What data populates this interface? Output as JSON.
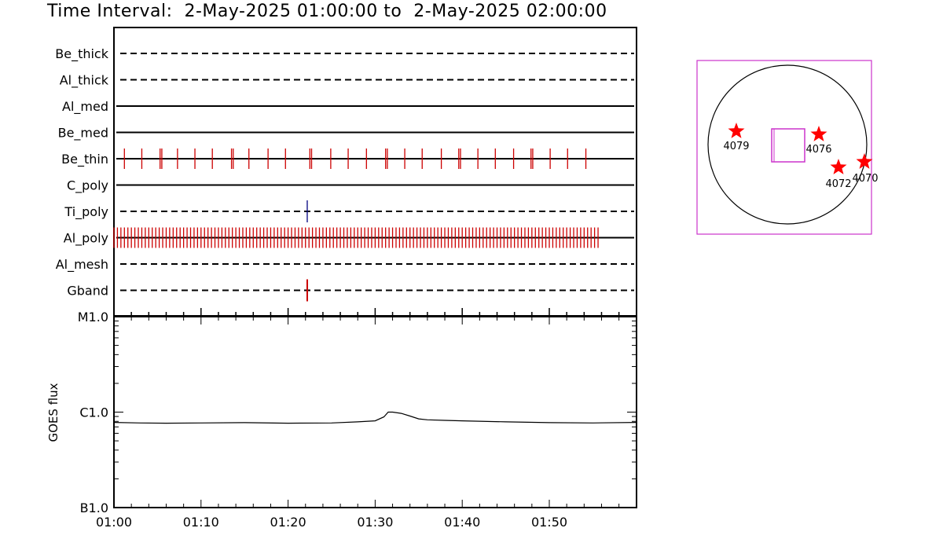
{
  "title": "Time Interval:  2-May-2025 01:00:00 to  2-May-2025 02:00:00",
  "chart_data": [
    {
      "type": "timeline",
      "x_range": [
        "01:00",
        "02:00"
      ],
      "x_tick_labels": [
        "01:00",
        "01:10",
        "01:20",
        "01:30",
        "01:40",
        "01:50"
      ],
      "channels": [
        {
          "name": "Be_thick",
          "style": "dashed",
          "events": [],
          "color": "#000000"
        },
        {
          "name": "Al_thick",
          "style": "dashed",
          "events": [],
          "color": "#000000"
        },
        {
          "name": "Al_med",
          "style": "solid",
          "events": [],
          "color": "#000000"
        },
        {
          "name": "Be_med",
          "style": "solid",
          "events": [],
          "color": "#000000"
        },
        {
          "name": "Be_thin",
          "style": "solid",
          "color": "#cc0000",
          "events": [
            1.2,
            3.2,
            5.3,
            5.5,
            7.3,
            9.3,
            11.3,
            13.5,
            13.7,
            15.5,
            17.7,
            19.7,
            22.5,
            22.7,
            24.9,
            26.9,
            29.0,
            31.2,
            31.4,
            33.4,
            35.4,
            37.6,
            39.6,
            39.8,
            41.8,
            43.8,
            45.9,
            47.9,
            48.1,
            50.1,
            52.1,
            54.2
          ]
        },
        {
          "name": "C_poly",
          "style": "solid",
          "events": [],
          "color": "#000000"
        },
        {
          "name": "Ti_poly",
          "style": "dashed",
          "color": "#000080",
          "events": [
            22.2
          ]
        },
        {
          "name": "Al_poly",
          "style": "solid",
          "color": "#cc0000",
          "events": [
            0.0,
            0.4,
            0.8,
            1.2,
            1.6,
            2.0,
            2.4,
            2.8,
            3.2,
            3.6,
            4.0,
            4.4,
            4.8,
            5.2,
            5.6,
            6.0,
            6.4,
            6.8,
            7.2,
            7.6,
            8.0,
            8.4,
            8.8,
            9.2,
            9.6,
            10.0,
            10.4,
            10.8,
            11.2,
            11.6,
            12.0,
            12.4,
            12.8,
            13.2,
            13.6,
            14.0,
            14.4,
            14.8,
            15.2,
            15.6,
            16.0,
            16.4,
            16.8,
            17.2,
            17.6,
            18.0,
            18.4,
            18.8,
            19.2,
            19.6,
            20.0,
            20.4,
            20.8,
            21.2,
            21.6,
            22.0,
            22.4,
            22.8,
            23.2,
            23.6,
            24.0,
            24.4,
            24.8,
            25.2,
            25.6,
            26.0,
            26.4,
            26.8,
            27.2,
            27.6,
            28.0,
            28.4,
            28.8,
            29.2,
            29.6,
            30.0,
            30.4,
            30.8,
            31.2,
            31.6,
            32.0,
            32.4,
            32.8,
            33.2,
            33.6,
            34.0,
            34.4,
            34.8,
            35.2,
            35.6,
            36.0,
            36.4,
            36.8,
            37.2,
            37.6,
            38.0,
            38.4,
            38.8,
            39.2,
            39.6,
            40.0,
            40.4,
            40.8,
            41.2,
            41.6,
            42.0,
            42.4,
            42.8,
            43.2,
            43.6,
            44.0,
            44.4,
            44.8,
            45.2,
            45.6,
            46.0,
            46.4,
            46.8,
            47.2,
            47.6,
            48.0,
            48.4,
            48.8,
            49.2,
            49.6,
            50.0,
            50.4,
            50.8,
            51.2,
            51.6,
            52.0,
            52.4,
            52.8,
            53.2,
            53.6,
            54.0,
            54.4,
            54.8,
            55.2,
            55.6
          ]
        },
        {
          "name": "Al_mesh",
          "style": "dashed",
          "events": [],
          "color": "#000000"
        },
        {
          "name": "Gband",
          "style": "dashed",
          "color": "#cc0000",
          "events": [
            22.2
          ]
        }
      ]
    },
    {
      "type": "line",
      "ylabel": "GOES flux",
      "yscale": "log",
      "y_tick_labels": [
        "M1.0",
        "C1.0",
        "B1.0"
      ],
      "y_tick_values": [
        1e-05,
        1e-06,
        1e-07
      ],
      "ylim": [
        1e-07,
        1e-05
      ],
      "x_tick_labels": [
        "01:00",
        "01:10",
        "01:20",
        "01:30",
        "01:40",
        "01:50"
      ],
      "series": [
        {
          "color": "#000000",
          "x": [
            0,
            3,
            6,
            10,
            15,
            20,
            25,
            28,
            30,
            31,
            31.5,
            32,
            33,
            34,
            35,
            36,
            38,
            40,
            45,
            50,
            55,
            60
          ],
          "y": [
            7.8e-07,
            7.7e-07,
            7.65e-07,
            7.7e-07,
            7.75e-07,
            7.65e-07,
            7.7e-07,
            7.9e-07,
            8.1e-07,
            8.9e-07,
            1e-06,
            1e-06,
            9.7e-07,
            9.1e-07,
            8.5e-07,
            8.3e-07,
            8.2e-07,
            8.1e-07,
            7.9e-07,
            7.75e-07,
            7.7e-07,
            7.8e-07
          ]
        }
      ]
    },
    {
      "type": "scatter",
      "description_free": true,
      "points": [
        {
          "label": "4079",
          "color": "#ff0000"
        },
        {
          "label": "4076",
          "color": "#ff0000"
        },
        {
          "label": "4072",
          "color": "#ff0000"
        },
        {
          "label": "4070",
          "color": "#ff0000"
        }
      ],
      "frame_color": "#cc33cc"
    }
  ]
}
